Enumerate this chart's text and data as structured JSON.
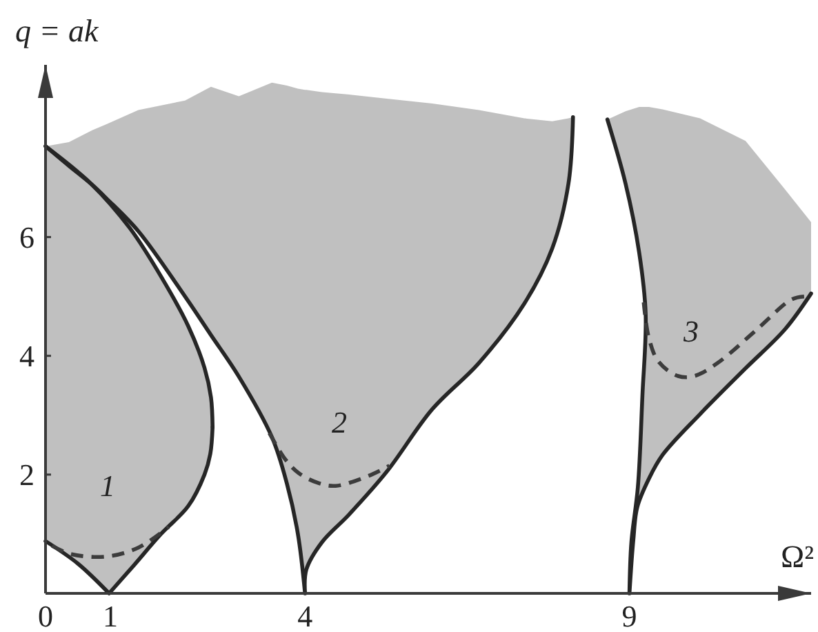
{
  "chart_data": {
    "type": "line",
    "xlabel": "Ω²",
    "ylabel": "q = ak",
    "xlim": [
      0,
      11.8
    ],
    "ylim": [
      0,
      8.9
    ],
    "xticks": [
      0,
      1,
      4,
      9
    ],
    "yticks": [
      2,
      4,
      6
    ],
    "line_style": "solid",
    "annotations": [
      "1",
      "2",
      "3"
    ],
    "series": [
      {
        "color": "#262626",
        "x": [
          0,
          0.5,
          0.98,
          1.36,
          1.78,
          2.2,
          2.45,
          2.54,
          2.575,
          null,
          0,
          0.36,
          0.72,
          0.94,
          1.43,
          2.15,
          2.55,
          2.98,
          3.49,
          3.72,
          3.89,
          4,
          4.02,
          4.26,
          4.68,
          5.26,
          5.96,
          6.68,
          7.38,
          7.81,
          8.06,
          8.13,
          null,
          8.66,
          8.94,
          9.15,
          9.25,
          9.2,
          9.13,
          9.03,
          9.0,
          9.06,
          9.12,
          9.3,
          9.51,
          10.09,
          10.79,
          11.4,
          11.8
        ],
        "values": [
          0.88,
          0.5,
          0,
          0.47,
          1.0,
          1.47,
          2.0,
          2.35,
          2.8,
          null,
          7.53,
          7.2,
          6.88,
          6.65,
          6.1,
          5.0,
          4.35,
          3.65,
          2.63,
          1.85,
          1.0,
          0,
          0.4,
          0.86,
          1.33,
          2.05,
          3.1,
          3.88,
          4.88,
          5.81,
          6.9,
          8.02,
          null,
          7.98,
          6.9,
          5.74,
          4.7,
          3.33,
          1.79,
          0.86,
          0,
          0.9,
          1.45,
          1.93,
          2.33,
          3.02,
          3.79,
          4.45,
          5.05
        ],
        "lower": [
          0.88,
          0.5,
          0,
          0.47,
          1.0,
          1.47,
          2.0,
          2.35,
          2.8,
          null,
          7.53,
          7.2,
          6.88,
          6.65,
          6.1,
          5.0,
          4.35,
          3.65,
          2.63,
          1.85,
          1.0,
          0,
          0.4,
          0.86,
          1.33,
          2.05,
          3.1,
          3.88,
          4.88,
          5.81,
          6.9,
          8.02,
          null,
          7.98,
          6.9,
          5.74,
          4.7,
          3.33,
          1.79,
          0.86,
          0,
          0.9,
          1.45,
          1.93,
          2.33,
          3.02,
          3.79,
          4.45,
          5.05
        ],
        "upper": [
          7.53,
          7.08,
          6.55,
          6.05,
          5.33,
          4.5,
          3.8,
          3.35,
          2.8,
          null,
          7.53,
          7.6,
          7.8,
          7.9,
          8.14,
          8.3,
          8.53,
          8.37,
          8.6,
          8.55,
          8.5,
          8.48,
          8.48,
          8.44,
          8.4,
          8.33,
          8.25,
          8.14,
          8.0,
          7.95,
          8.0,
          8.02,
          null,
          7.98,
          8.12,
          8.19,
          8.19,
          8.19,
          8.19,
          8.19,
          8.19,
          8.19,
          8.19,
          8.19,
          8.15,
          8.0,
          7.62,
          6.8,
          6.25
        ]
      },
      {
        "color": "#262626",
        "x": [
          0,
          0.7,
          1.3,
          1.8,
          2.2,
          2.45,
          2.55,
          2.575
        ],
        "values": [
          7.53,
          6.9,
          6.15,
          5.3,
          4.5,
          3.8,
          3.3,
          2.8
        ]
      },
      {
        "color": "#3c3c3c",
        "line_style": "dashed",
        "x": [
          0.1,
          0.4,
          0.94,
          1.43,
          1.9,
          null,
          3.45,
          3.7,
          3.91,
          4.2,
          4.47,
          4.98,
          5.3,
          null,
          9.22,
          9.3,
          9.45,
          9.75,
          10.0,
          10.36,
          10.94,
          11.5,
          11.7
        ],
        "values": [
          0.8,
          0.66,
          0.62,
          0.77,
          1.12,
          null,
          2.7,
          2.25,
          2.02,
          1.86,
          1.81,
          1.98,
          2.15,
          null,
          4.9,
          4.3,
          3.9,
          3.66,
          3.66,
          3.88,
          4.42,
          4.95,
          5.0
        ]
      }
    ]
  }
}
